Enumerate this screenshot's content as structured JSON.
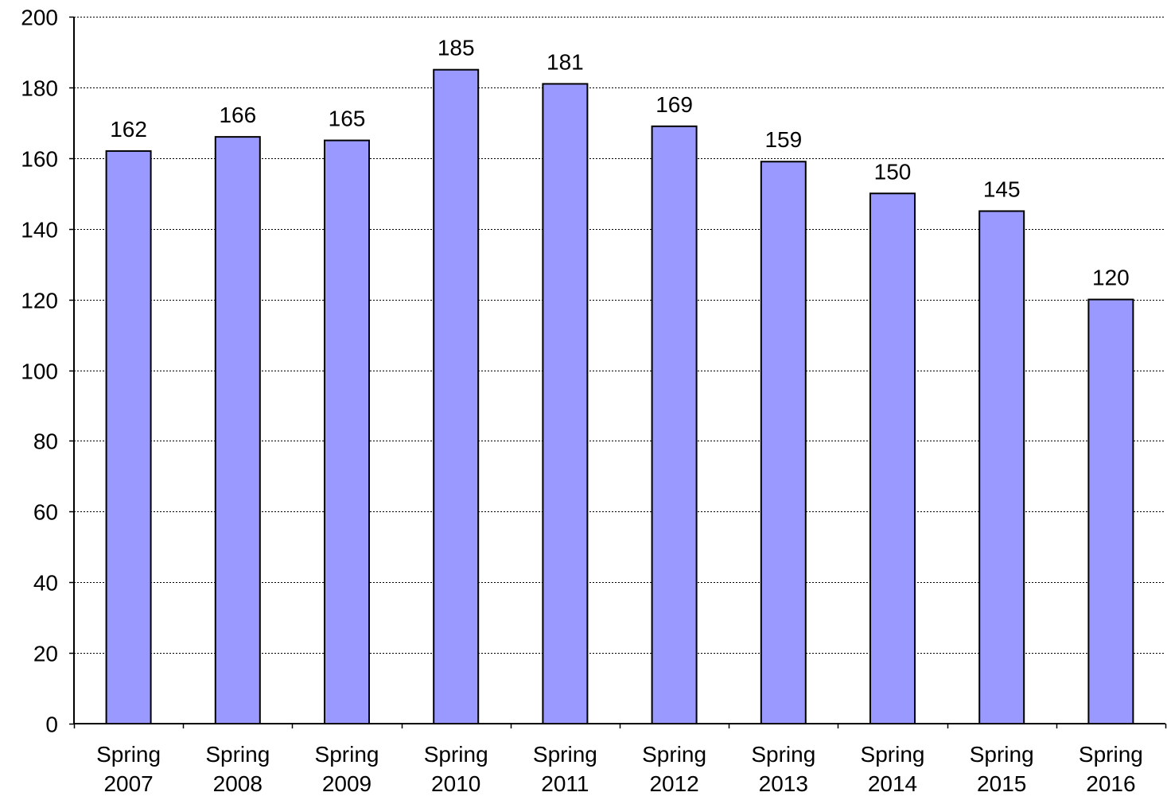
{
  "chart_data": {
    "type": "bar",
    "title": "",
    "xlabel": "",
    "ylabel": "",
    "categories": [
      [
        "Spring",
        "2007"
      ],
      [
        "Spring",
        "2008"
      ],
      [
        "Spring",
        "2009"
      ],
      [
        "Spring",
        "2010"
      ],
      [
        "Spring",
        "2011"
      ],
      [
        "Spring",
        "2012"
      ],
      [
        "Spring",
        "2013"
      ],
      [
        "Spring",
        "2014"
      ],
      [
        "Spring",
        "2015"
      ],
      [
        "Spring",
        "2016"
      ]
    ],
    "values": [
      162,
      166,
      165,
      185,
      181,
      169,
      159,
      150,
      145,
      120
    ],
    "data_labels": [
      "162",
      "166",
      "165",
      "185",
      "181",
      "169",
      "159",
      "150",
      "145",
      "120"
    ],
    "ylim": [
      0,
      200
    ],
    "yticks": [
      0,
      20,
      40,
      60,
      80,
      100,
      120,
      140,
      160,
      180,
      200
    ],
    "ytick_labels": [
      "0",
      "20",
      "40",
      "60",
      "80",
      "100",
      "120",
      "140",
      "160",
      "180",
      "200"
    ],
    "grid": true,
    "legend": "none",
    "colors": {
      "bar_fill": "#9999ff",
      "bar_stroke": "#000000",
      "grid": "#000000",
      "axis": "#000000",
      "background": "#ffffff"
    }
  }
}
